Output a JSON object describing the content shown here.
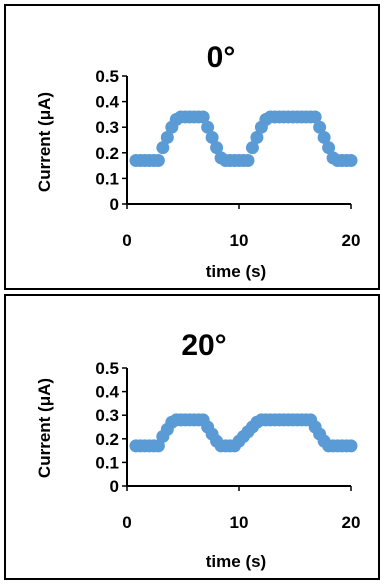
{
  "chart_data": [
    {
      "type": "scatter",
      "title": "0°",
      "xlabel": "time (s)",
      "ylabel": "Current (μA)",
      "xlim": [
        0,
        20
      ],
      "ylim": [
        0,
        0.5
      ],
      "xticks": [
        "0",
        "10",
        "20"
      ],
      "yticks": [
        "0",
        "0.1",
        "0.2",
        "0.3",
        "0.4",
        "0.5"
      ],
      "grid": false,
      "marker_color": "#5B9BD5",
      "series": [
        {
          "x": [
            0.8,
            1.2,
            1.6,
            2.0,
            2.4,
            2.8,
            3.2,
            3.6,
            4.0,
            4.4,
            4.8,
            5.2,
            5.6,
            6.0,
            6.4,
            6.8,
            7.2,
            7.6,
            8.0,
            8.4,
            8.8,
            9.2,
            9.6,
            10.0,
            10.4,
            10.8,
            11.2,
            11.6,
            12.0,
            12.4,
            12.8,
            13.2,
            13.6,
            14.0,
            14.4,
            14.8,
            15.2,
            15.6,
            16.0,
            16.4,
            16.8,
            17.2,
            17.6,
            18.0,
            18.4,
            18.8,
            19.2,
            19.6,
            20.0
          ],
          "y": [
            0.17,
            0.17,
            0.17,
            0.17,
            0.17,
            0.17,
            0.22,
            0.26,
            0.3,
            0.33,
            0.34,
            0.34,
            0.34,
            0.34,
            0.34,
            0.34,
            0.3,
            0.26,
            0.22,
            0.18,
            0.17,
            0.17,
            0.17,
            0.17,
            0.17,
            0.17,
            0.22,
            0.26,
            0.3,
            0.33,
            0.34,
            0.34,
            0.34,
            0.34,
            0.34,
            0.34,
            0.34,
            0.34,
            0.34,
            0.34,
            0.34,
            0.3,
            0.26,
            0.22,
            0.18,
            0.17,
            0.17,
            0.17,
            0.17
          ]
        }
      ]
    },
    {
      "type": "scatter",
      "title": "20°",
      "xlabel": "time (s)",
      "ylabel": "Current (μA)",
      "xlim": [
        0,
        20
      ],
      "ylim": [
        0,
        0.5
      ],
      "xticks": [
        "0",
        "10",
        "20"
      ],
      "yticks": [
        "0",
        "0.1",
        "0.2",
        "0.3",
        "0.4",
        "0.5"
      ],
      "grid": false,
      "marker_color": "#5B9BD5",
      "series": [
        {
          "x": [
            0.8,
            1.2,
            1.6,
            2.0,
            2.4,
            2.8,
            3.2,
            3.6,
            4.0,
            4.4,
            4.8,
            5.2,
            5.6,
            6.0,
            6.4,
            6.8,
            7.2,
            7.6,
            8.0,
            8.4,
            8.8,
            9.2,
            9.6,
            10.0,
            10.4,
            10.8,
            11.2,
            11.6,
            12.0,
            12.4,
            12.8,
            13.2,
            13.6,
            14.0,
            14.4,
            14.8,
            15.2,
            15.6,
            16.0,
            16.4,
            16.8,
            17.2,
            17.6,
            18.0,
            18.4,
            18.8,
            19.2,
            19.6,
            20.0
          ],
          "y": [
            0.17,
            0.17,
            0.17,
            0.17,
            0.17,
            0.17,
            0.21,
            0.24,
            0.27,
            0.28,
            0.28,
            0.28,
            0.28,
            0.28,
            0.28,
            0.28,
            0.25,
            0.22,
            0.19,
            0.17,
            0.17,
            0.17,
            0.17,
            0.19,
            0.21,
            0.23,
            0.25,
            0.27,
            0.28,
            0.28,
            0.28,
            0.28,
            0.28,
            0.28,
            0.28,
            0.28,
            0.28,
            0.28,
            0.28,
            0.28,
            0.25,
            0.22,
            0.19,
            0.17,
            0.17,
            0.17,
            0.17,
            0.17,
            0.17
          ]
        }
      ]
    }
  ]
}
